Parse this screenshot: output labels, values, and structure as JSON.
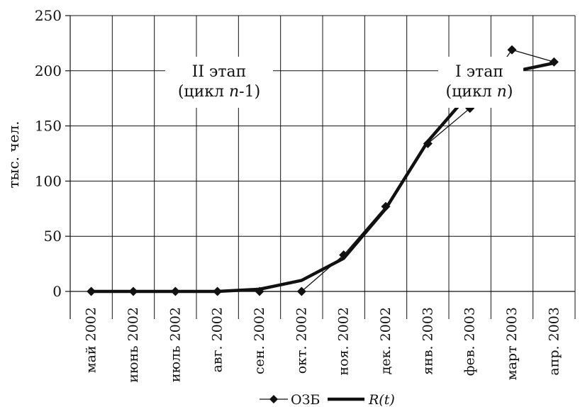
{
  "chart_data": {
    "type": "line",
    "title": "",
    "xlabel": "",
    "ylabel": "тыс. чел.",
    "ylim": [
      0,
      250
    ],
    "yticks": [
      0,
      50,
      100,
      150,
      200,
      250
    ],
    "categories": [
      "май 2002",
      "июнь 2002",
      "июль 2002",
      "авг. 2002",
      "сен. 2002",
      "окт. 2002",
      "ноя. 2002",
      "дек. 2002",
      "янв. 2003",
      "фев. 2003",
      "март 2003",
      "апр. 2003"
    ],
    "series": [
      {
        "name": "ОЗБ",
        "marker": "diamond",
        "values": [
          0,
          0,
          0,
          0,
          0,
          0,
          33,
          77,
          134,
          166,
          219,
          208
        ]
      },
      {
        "name": "R(t)",
        "marker": "none",
        "values": [
          0,
          0,
          0,
          0,
          2,
          10,
          30,
          75,
          136,
          180,
          199,
          207
        ]
      }
    ],
    "annotations": [
      {
        "line1": "II этап",
        "line2_pre": "(цикл ",
        "line2_var": "n",
        "line2_post": "-1)"
      },
      {
        "line1": "I этап",
        "line2_pre": "(цикл ",
        "line2_var": "n",
        "line2_post": ")"
      }
    ],
    "grid": true,
    "legend": "bottom"
  }
}
